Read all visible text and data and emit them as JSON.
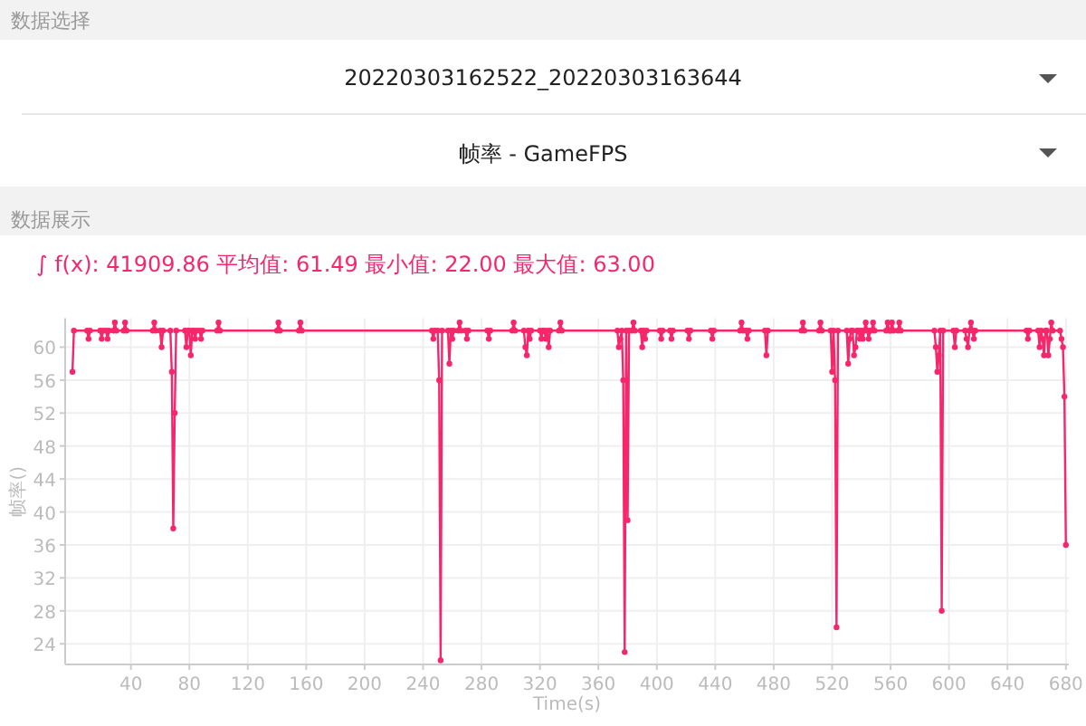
{
  "chart_data": {
    "type": "line",
    "title": "∫ f(x): 41909.86 平均值: 61.49 最小值: 22.00 最大值: 63.00",
    "xlabel": "Time(s)",
    "ylabel": "帧率()",
    "annotations": [
      "数据选择",
      "20220303162522_20220303163644",
      "帧率 - GameFPS",
      "数据展示"
    ],
    "x": [
      0,
      1,
      10,
      11,
      12,
      19,
      20,
      21,
      23,
      24,
      25,
      28,
      29,
      30,
      35,
      36,
      37,
      55,
      56,
      57,
      60,
      61,
      62,
      67,
      68,
      69,
      70,
      71,
      77,
      78,
      79,
      80,
      81,
      82,
      83,
      84,
      85,
      87,
      88,
      89,
      99,
      100,
      101,
      140,
      141,
      142,
      155,
      156,
      157,
      246,
      247,
      248,
      250,
      251,
      252,
      253,
      257,
      258,
      259,
      260,
      261,
      264,
      265,
      266,
      269,
      270,
      271,
      284,
      285,
      286,
      301,
      302,
      303,
      309,
      310,
      311,
      312,
      313,
      314,
      320,
      321,
      322,
      323,
      324,
      325,
      326,
      327,
      333,
      334,
      335,
      373,
      374,
      375,
      376,
      377,
      378,
      379,
      380,
      381,
      383,
      384,
      385,
      389,
      390,
      391,
      392,
      393,
      402,
      403,
      404,
      409,
      410,
      411,
      421,
      422,
      423,
      437,
      438,
      439,
      457,
      458,
      459,
      461,
      462,
      463,
      474,
      475,
      476,
      499,
      500,
      501,
      511,
      512,
      513,
      519,
      520,
      521,
      522,
      523,
      524,
      530,
      531,
      532,
      533,
      534,
      535,
      536,
      537,
      538,
      539,
      540,
      541,
      542,
      543,
      544,
      545,
      546,
      547,
      548,
      549,
      557,
      558,
      559,
      560,
      561,
      562,
      565,
      566,
      567,
      590,
      591,
      592,
      593,
      594,
      595,
      596,
      603,
      604,
      605,
      611,
      612,
      613,
      614,
      615,
      616,
      617,
      618,
      653,
      654,
      655,
      661,
      662,
      663,
      664,
      665,
      666,
      667,
      668,
      669,
      670,
      671,
      676,
      677,
      678,
      679,
      680
    ],
    "series": [
      {
        "color": "#f7266b",
        "values": [
          57,
          62,
          62,
          61,
          62,
          62,
          61,
          62,
          62,
          61,
          62,
          62,
          63,
          62,
          62,
          63,
          62,
          62,
          63,
          62,
          62,
          60,
          62,
          62,
          57,
          38,
          52,
          62,
          62,
          60,
          62,
          62,
          59,
          62,
          62,
          61,
          62,
          62,
          61,
          62,
          62,
          63,
          62,
          62,
          63,
          62,
          62,
          63,
          62,
          62,
          61,
          62,
          62,
          56,
          22,
          62,
          62,
          58,
          62,
          61,
          62,
          62,
          63,
          62,
          62,
          61,
          62,
          62,
          61,
          62,
          62,
          63,
          62,
          62,
          60,
          59,
          62,
          61,
          62,
          62,
          61,
          62,
          62,
          61,
          62,
          60,
          62,
          62,
          63,
          62,
          62,
          60,
          61,
          62,
          56,
          23,
          62,
          39,
          62,
          62,
          63,
          62,
          62,
          60,
          62,
          61,
          62,
          62,
          61,
          62,
          62,
          61,
          62,
          62,
          61,
          62,
          62,
          61,
          62,
          62,
          63,
          62,
          62,
          61,
          62,
          62,
          59,
          62,
          62,
          63,
          62,
          62,
          63,
          62,
          62,
          57,
          62,
          56,
          26,
          62,
          62,
          58,
          61,
          62,
          62,
          59,
          60,
          62,
          62,
          61,
          62,
          61,
          62,
          63,
          62,
          61,
          62,
          62,
          63,
          62,
          62,
          63,
          62,
          62,
          63,
          62,
          62,
          63,
          62,
          62,
          60,
          57,
          59,
          62,
          28,
          62,
          62,
          60,
          62,
          62,
          61,
          60,
          62,
          63,
          62,
          61,
          62,
          62,
          61,
          62,
          62,
          60,
          62,
          61,
          59,
          62,
          62,
          59,
          61,
          63,
          62,
          62,
          61,
          60,
          54,
          36
        ]
      }
    ],
    "xlim": [
      -5,
      682
    ],
    "ylim": [
      21.5,
      63.5
    ],
    "xticks": [
      40,
      80,
      120,
      160,
      200,
      240,
      280,
      320,
      360,
      400,
      440,
      480,
      520,
      560,
      600,
      640,
      680
    ],
    "yticks": [
      24,
      28,
      32,
      36,
      40,
      44,
      48,
      52,
      56,
      60
    ],
    "grid": true,
    "marker": "circle"
  }
}
